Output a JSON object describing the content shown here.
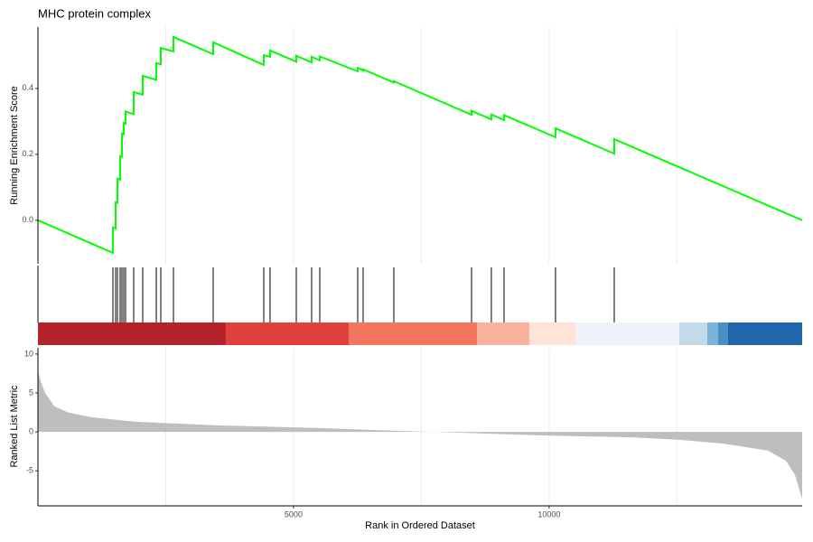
{
  "chart_data": [
    {
      "type": "line",
      "title": "MHC protein complex",
      "y_label": "Running Enrichment Score",
      "color": "#00ff00",
      "x": [
        0,
        1467,
        1467,
        1520,
        1520,
        1555,
        1555,
        1608,
        1608,
        1643,
        1643,
        1679,
        1679,
        1714,
        1714,
        1873,
        1873,
        2050,
        2050,
        2315,
        2315,
        2403,
        2403,
        2651,
        2651,
        3428,
        3428,
        4418,
        4418,
        4541,
        4541,
        5054,
        5054,
        5354,
        5354,
        5513,
        5513,
        6255,
        6255,
        6361,
        6361,
        6962,
        6962,
        8482,
        8482,
        8870,
        8870,
        9118,
        9118,
        10125,
        10125,
        11274,
        11274,
        14950
      ],
      "y": [
        0,
        -0.099,
        -0.022,
        -0.025,
        0.055,
        0.053,
        0.126,
        0.123,
        0.195,
        0.193,
        0.263,
        0.261,
        0.295,
        0.293,
        0.33,
        0.322,
        0.389,
        0.381,
        0.438,
        0.426,
        0.477,
        0.473,
        0.523,
        0.512,
        0.556,
        0.504,
        0.54,
        0.471,
        0.501,
        0.496,
        0.515,
        0.481,
        0.499,
        0.479,
        0.496,
        0.485,
        0.497,
        0.452,
        0.462,
        0.455,
        0.458,
        0.418,
        0.422,
        0.32,
        0.332,
        0.306,
        0.321,
        0.304,
        0.319,
        0.252,
        0.279,
        0.202,
        0.246,
        0
      ],
      "xlim": [
        0,
        14950
      ],
      "ylim": [
        -0.132,
        0.586
      ],
      "yticks": [
        {
          "value": 0,
          "label": "0.0"
        },
        0.2,
        0.4
      ],
      "x_grid": [
        2500,
        5000,
        7500,
        10000,
        12500
      ]
    },
    {
      "type": "rug",
      "color": "#000000",
      "x": [
        1467,
        1520,
        1555,
        1608,
        1643,
        1679,
        1714,
        1873,
        2050,
        2315,
        2403,
        2651,
        3428,
        4418,
        4541,
        5054,
        5354,
        5513,
        6255,
        6361,
        6962,
        8482,
        8870,
        9118,
        10125,
        11274
      ],
      "band_edges": [
        0,
        3675,
        6079,
        8588,
        9613,
        10532,
        12546,
        13094,
        13306,
        13500,
        14950
      ],
      "band_colors": [
        "#b2232a",
        "#e2403e",
        "#f4755e",
        "#f9b39c",
        "#fde3d8",
        "#eef3fb",
        "#c4dae9",
        "#7bb4d8",
        "#4c8dc3",
        "#2166ac"
      ],
      "xlim": [
        0,
        14950
      ]
    },
    {
      "type": "area",
      "y_label": "Ranked List Metric",
      "x_label": "Rank in Ordered Dataset",
      "color": "#bebebe",
      "x": [
        0,
        53,
        141,
        318,
        583,
        1025,
        1908,
        3675,
        5442,
        7209,
        7739,
        9860,
        11627,
        12510,
        13394,
        14277,
        14630,
        14807,
        14950
      ],
      "y": [
        7.9,
        6.5,
        5.0,
        3.3,
        2.5,
        1.9,
        1.3,
        0.8,
        0.5,
        0.1,
        0,
        -0.45,
        -0.7,
        -1.0,
        -1.5,
        -2.4,
        -3.7,
        -5.5,
        -8.6
      ],
      "xlim": [
        0,
        14950
      ],
      "ylim": [
        -9.5,
        10.8
      ],
      "xticks": [
        5000,
        10000
      ],
      "yticks": [
        10,
        5,
        0,
        -5
      ],
      "x_grid": [
        2500,
        5000,
        7500,
        10000,
        12500
      ]
    }
  ]
}
